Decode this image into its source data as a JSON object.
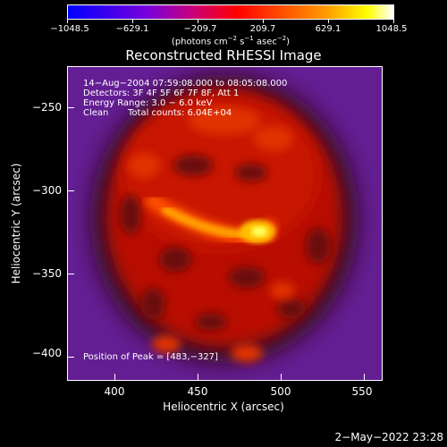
{
  "colorbar": {
    "tick_labels": [
      "−1048.5",
      "−629.1",
      "−209.7",
      "209.7",
      "629.1",
      "1048.5"
    ],
    "units_main": "(photons cm",
    "units_sup1": "−2",
    "units_mid": " s",
    "units_sup2": "−1",
    "units_end": " asec",
    "units_sup3": "−2",
    "units_close": ")"
  },
  "title": "Reconstructed RHESSI Image",
  "overlay": {
    "line1": "14−Aug−2004 07:59:08.000 to 08:05:08.000",
    "line2": "Detectors: 3F 4F 5F 6F 7F 8F, Att 1",
    "line3": "Energy Range: 3.0 − 6.0 keV",
    "line4_left": "Clean",
    "line4_right": "Total counts: 6.04E+04",
    "peak": "Position of Peak = [483,−327]"
  },
  "axes": {
    "xlabel": "Heliocentric X (arcsec)",
    "ylabel": "Heliocentric Y (arcsec)",
    "xticks": [
      "400",
      "450",
      "500",
      "550"
    ],
    "yticks": [
      "−250",
      "−300",
      "−350",
      "−400"
    ]
  },
  "timestamp": "2−May−2022 23:28",
  "colors": {
    "background": "#000000",
    "foreground": "#ffffff",
    "colormap": [
      "#0000ff",
      "#7b00d9",
      "#c8007c",
      "#ff0000",
      "#ff5000",
      "#ffa000",
      "#ffff00",
      "#ffffff"
    ]
  }
}
